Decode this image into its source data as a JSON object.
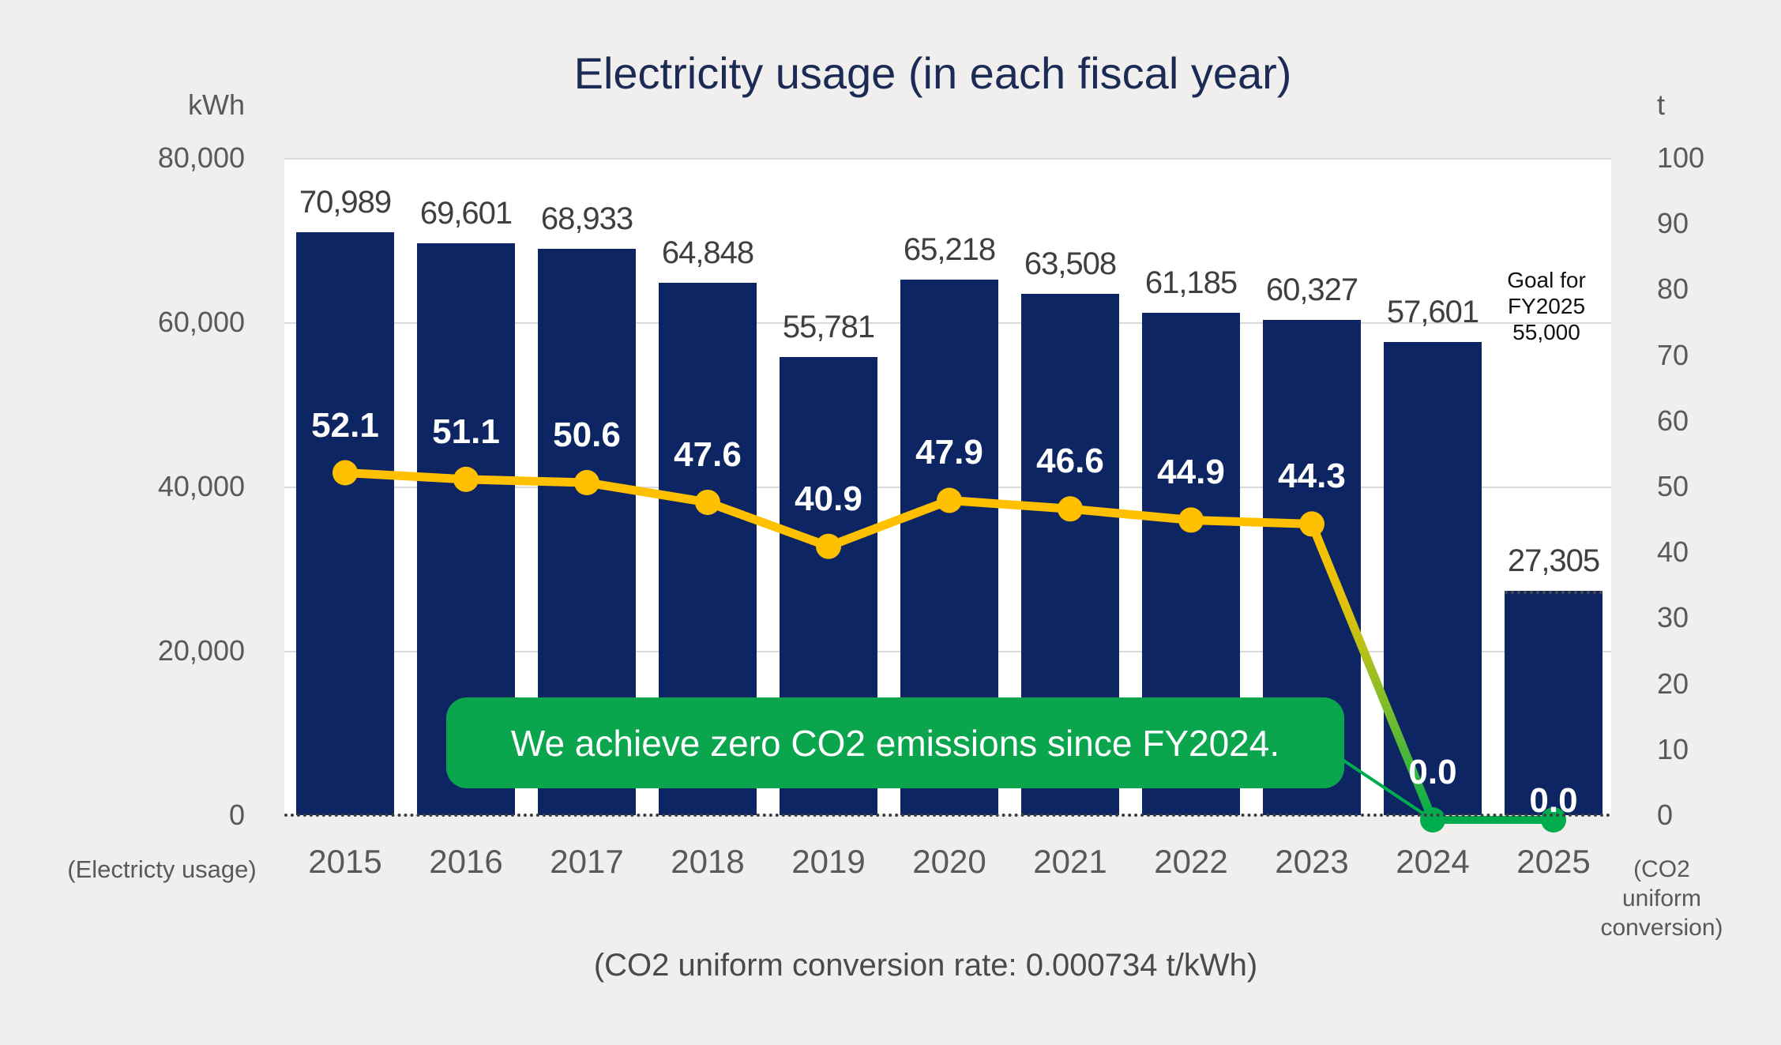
{
  "chart_data": {
    "type": "combo-bar-line",
    "title": "Electricity usage (in each fiscal year)",
    "categories": [
      "2015",
      "2016",
      "2017",
      "2018",
      "2019",
      "2020",
      "2021",
      "2022",
      "2023",
      "2024",
      "2025"
    ],
    "series": [
      {
        "name": "Electricity usage",
        "type": "bar",
        "axis": "left",
        "unit": "kWh",
        "color": "#0d2562",
        "values": [
          70989,
          69601,
          68933,
          64848,
          55781,
          65218,
          63508,
          61185,
          60327,
          57601,
          27305
        ],
        "labels": [
          "70,989",
          "69,601",
          "68,933",
          "64,848",
          "55,781",
          "65,218",
          "63,508",
          "61,185",
          "60,327",
          "57,601",
          "27,305"
        ],
        "dotted_outline_index": 10
      },
      {
        "name": "CO2 uniform conversion",
        "type": "line",
        "axis": "right",
        "unit": "t",
        "color": "#ffc000",
        "zero_color": "#00ac4e",
        "values": [
          52.1,
          51.1,
          50.6,
          47.6,
          40.9,
          47.9,
          46.6,
          44.9,
          44.3,
          0.0,
          0.0
        ],
        "labels": [
          "52.1",
          "51.1",
          "50.6",
          "47.6",
          "40.9",
          "47.9",
          "46.6",
          "44.9",
          "44.3",
          "0.0",
          "0.0"
        ]
      }
    ],
    "left_axis": {
      "unit": "kWh",
      "ylim": [
        0,
        80000
      ],
      "ticks": [
        "80,000",
        "60,000",
        "40,000",
        "20,000",
        "0"
      ]
    },
    "right_axis": {
      "unit": "t",
      "ylim": [
        0,
        100
      ],
      "ticks": [
        "100",
        "90",
        "80",
        "70",
        "60",
        "50",
        "40",
        "30",
        "20",
        "10",
        "0"
      ]
    },
    "grid": "horizontal",
    "goal": {
      "lines": [
        "Goal for",
        "FY2025",
        "55,000"
      ],
      "value": 55000
    },
    "annotations": {
      "callout": "We achieve zero CO2 emissions since FY2024.",
      "callout_color": "#0ba54d",
      "axis_caption_left": "(Electricty usage)",
      "axis_caption_right_lines": [
        "(CO2",
        "uniform",
        "conversion)"
      ],
      "footnote": "(CO2 uniform conversion rate: 0.000734 t/kWh)"
    }
  }
}
